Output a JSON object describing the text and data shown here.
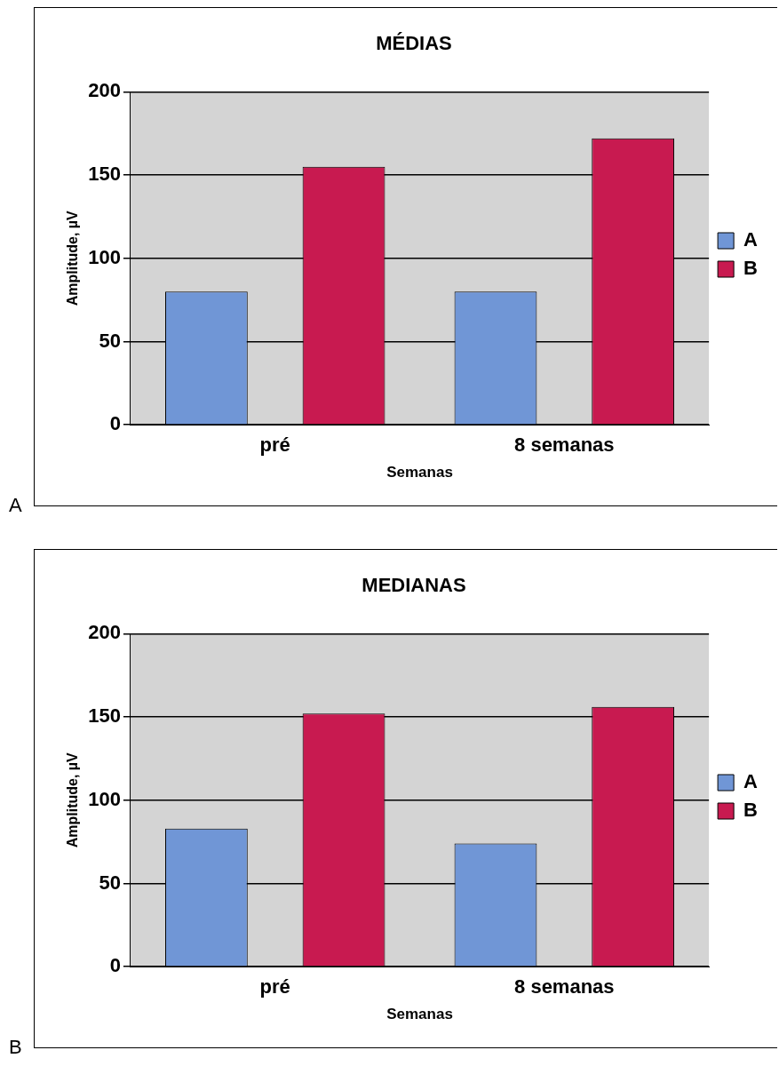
{
  "chart_data": [
    {
      "type": "bar",
      "title": "MÉDIAS",
      "xlabel": "Semanas",
      "ylabel": "Amplitude, µV",
      "categories": [
        "pré",
        "8 semanas"
      ],
      "series": [
        {
          "name": "A",
          "color": "#7096d6",
          "values": [
            80,
            80
          ]
        },
        {
          "name": "B",
          "color": "#c81a50",
          "values": [
            155,
            172
          ]
        }
      ],
      "ylim": [
        0,
        200
      ],
      "yticks": [
        0,
        50,
        100,
        150,
        200
      ],
      "grid": "y",
      "legend": "right",
      "annotations": [
        "A"
      ]
    },
    {
      "type": "bar",
      "title": "MEDIANAS",
      "xlabel": "Semanas",
      "ylabel": "Amplitude, µV",
      "categories": [
        "pré",
        "8 semanas"
      ],
      "series": [
        {
          "name": "A",
          "color": "#7096d6",
          "values": [
            83,
            74
          ]
        },
        {
          "name": "B",
          "color": "#c81a50",
          "values": [
            152,
            156
          ]
        }
      ],
      "ylim": [
        0,
        200
      ],
      "yticks": [
        0,
        50,
        100,
        150,
        200
      ],
      "grid": "y",
      "legend": "right",
      "annotations": [
        "B"
      ]
    }
  ]
}
